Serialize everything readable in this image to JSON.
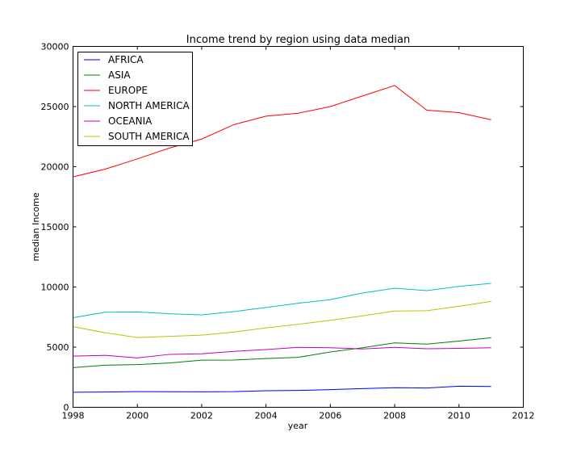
{
  "chart_data": {
    "type": "line",
    "title": "Income trend by region using data median",
    "xlabel": "year",
    "ylabel": "median Income",
    "xlim": [
      1998,
      2012
    ],
    "ylim": [
      0,
      30000
    ],
    "xticks": [
      "1998",
      "2000",
      "2002",
      "2004",
      "2006",
      "2008",
      "2010",
      "2012"
    ],
    "yticks": [
      "0",
      "5000",
      "10000",
      "15000",
      "20000",
      "25000",
      "30000"
    ],
    "grid": false,
    "legend_position": "top-left",
    "x": [
      1998,
      1999,
      2000,
      2001,
      2002,
      2003,
      2004,
      2005,
      2006,
      2007,
      2008,
      2009,
      2010,
      2011
    ],
    "series": [
      {
        "name": "AFRICA",
        "color": "#0000ff",
        "values": [
          1250,
          1270,
          1300,
          1290,
          1280,
          1300,
          1380,
          1400,
          1470,
          1550,
          1630,
          1600,
          1750,
          1730
        ]
      },
      {
        "name": "ASIA",
        "color": "#008000",
        "values": [
          3300,
          3500,
          3550,
          3680,
          3920,
          3930,
          4050,
          4150,
          4600,
          4950,
          5350,
          5250,
          5500,
          5780
        ]
      },
      {
        "name": "EUROPE",
        "color": "#ff0000",
        "values": [
          19150,
          19800,
          20650,
          21550,
          22300,
          23500,
          24200,
          24450,
          25000,
          25880,
          26750,
          24700,
          24500,
          23900
        ]
      },
      {
        "name": "NORTH AMERICA",
        "color": "#00bfbf",
        "values": [
          7450,
          7900,
          7930,
          7780,
          7680,
          7950,
          8300,
          8650,
          8950,
          9500,
          9900,
          9700,
          10050,
          10300
        ]
      },
      {
        "name": "OCEANIA",
        "color": "#bf00bf",
        "values": [
          4250,
          4320,
          4100,
          4400,
          4450,
          4650,
          4800,
          4980,
          4950,
          4850,
          4980,
          4870,
          4900,
          4950
        ]
      },
      {
        "name": "SOUTH AMERICA",
        "color": "#bfbf00",
        "values": [
          6700,
          6200,
          5800,
          5900,
          6000,
          6250,
          6600,
          6900,
          7230,
          7600,
          8000,
          8030,
          8400,
          8800
        ]
      }
    ]
  }
}
